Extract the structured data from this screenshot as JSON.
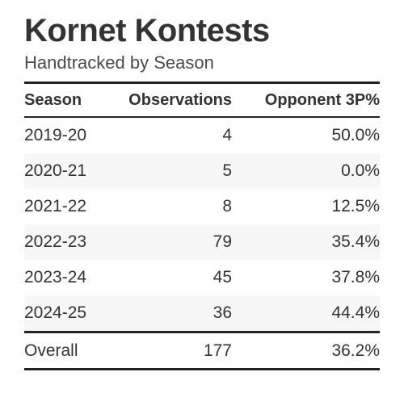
{
  "title": "Kornet Kontests",
  "subtitle": "Handtracked by Season",
  "columns": [
    "Season",
    "Observations",
    "Opponent 3P%"
  ],
  "rows": [
    [
      "2019-20",
      "4",
      "50.0%"
    ],
    [
      "2020-21",
      "5",
      "0.0%"
    ],
    [
      "2021-22",
      "8",
      "12.5%"
    ],
    [
      "2022-23",
      "79",
      "35.4%"
    ],
    [
      "2023-24",
      "45",
      "37.8%"
    ],
    [
      "2024-25",
      "36",
      "44.4%"
    ]
  ],
  "summary": [
    "Overall",
    "177",
    "36.2%"
  ],
  "colors": {
    "text": "#333333",
    "rule": "#222222",
    "stripe": "#f7f7f7"
  }
}
